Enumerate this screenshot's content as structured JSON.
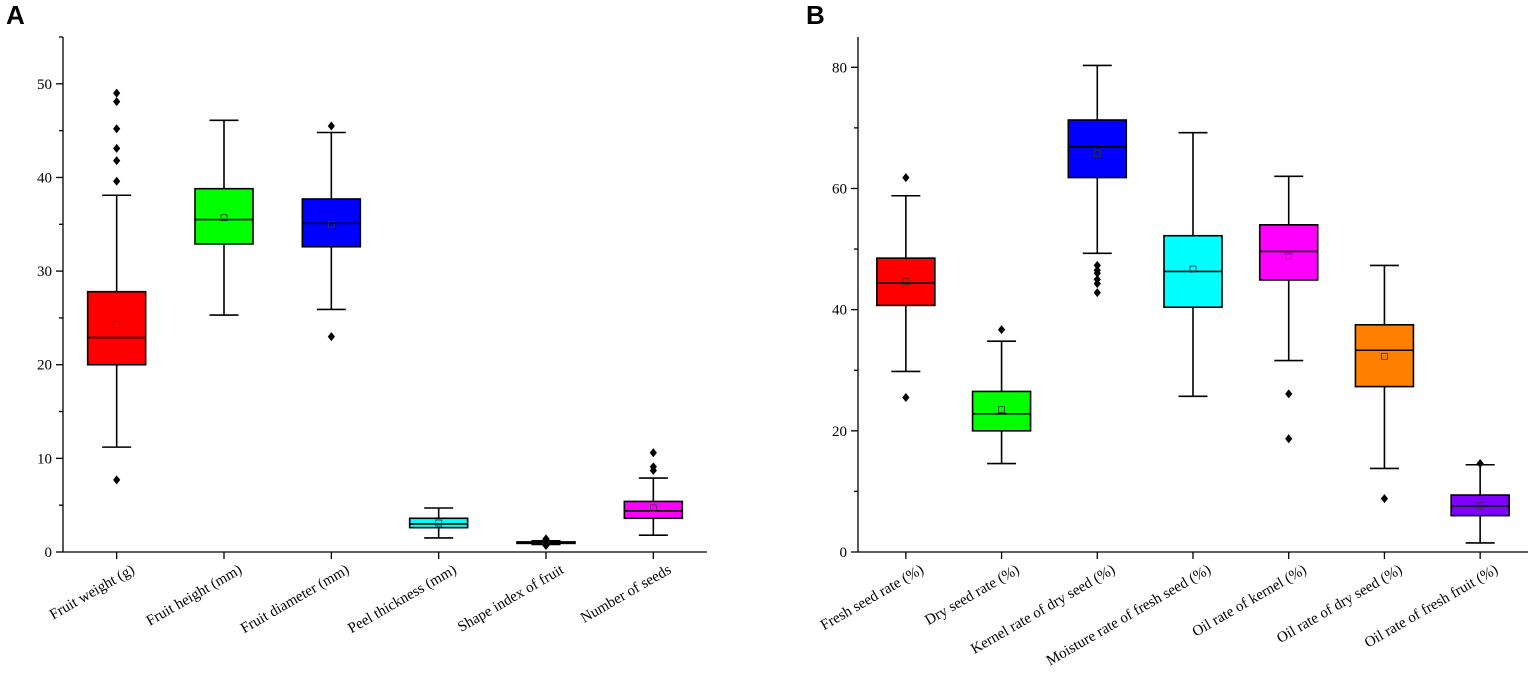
{
  "chart_data": [
    {
      "type": "box",
      "panel_label": "A",
      "ylim": [
        0,
        55
      ],
      "yticks": [
        0,
        10,
        20,
        30,
        40,
        50
      ],
      "categories": [
        "Fruit weight (g)",
        "Fruit height (mm)",
        "Fruit diameter (mm)",
        "Peel thickness (mm)",
        "Shape index of fruit",
        "Number of seeds"
      ],
      "boxes": [
        {
          "name": "Fruit weight (g)",
          "color": "#ff0000",
          "whisker_low": 11.2,
          "q1": 20.0,
          "median": 22.9,
          "q3": 27.8,
          "whisker_high": 38.1,
          "mean": 24.3,
          "outliers": [
            7.7,
            39.6,
            41.8,
            43.1,
            45.2,
            48.1,
            49.0
          ]
        },
        {
          "name": "Fruit height (mm)",
          "color": "#00ff00",
          "whisker_low": 25.3,
          "q1": 32.9,
          "median": 35.5,
          "q3": 38.8,
          "whisker_high": 46.1,
          "mean": 35.7,
          "outliers": []
        },
        {
          "name": "Fruit diameter (mm)",
          "color": "#0000ff",
          "whisker_low": 25.9,
          "q1": 32.6,
          "median": 35.1,
          "q3": 37.7,
          "whisker_high": 44.8,
          "mean": 35.0,
          "outliers": [
            23.0,
            45.5
          ]
        },
        {
          "name": "Peel thickness (mm)",
          "color": "#00ffff",
          "whisker_low": 1.5,
          "q1": 2.6,
          "median": 3.0,
          "q3": 3.6,
          "whisker_high": 4.7,
          "mean": 3.1,
          "outliers": []
        },
        {
          "name": "Shape index of fruit",
          "color": "#222222",
          "whisker_low": 0.8,
          "q1": 0.95,
          "median": 1.0,
          "q3": 1.08,
          "whisker_high": 1.2,
          "mean": 1.0,
          "outliers": [
            0.7,
            1.3,
            1.4
          ]
        },
        {
          "name": "Number of seeds",
          "color": "#ff00ff",
          "whisker_low": 1.8,
          "q1": 3.6,
          "median": 4.4,
          "q3": 5.4,
          "whisker_high": 7.9,
          "mean": 4.7,
          "outliers": [
            8.7,
            9.1,
            10.6
          ]
        }
      ]
    },
    {
      "type": "box",
      "panel_label": "B",
      "ylim": [
        0,
        85
      ],
      "yticks": [
        0,
        20,
        40,
        60,
        80
      ],
      "categories": [
        "Fresh seed rate (%)",
        "Dry seed rate (%)",
        "Kernel rate of dry seed (%)",
        "Moisture rate of fresh seed (%)",
        "Oil rate of kernel (%)",
        "Oil rate of dry seed (%)",
        "Oil rate of fresh fruit (%)"
      ],
      "boxes": [
        {
          "name": "Fresh seed rate (%)",
          "color": "#ff0000",
          "whisker_low": 29.8,
          "q1": 40.7,
          "median": 44.4,
          "q3": 48.5,
          "whisker_high": 58.8,
          "mean": 44.6,
          "outliers": [
            25.5,
            61.8
          ]
        },
        {
          "name": "Dry seed rate (%)",
          "color": "#00ff00",
          "whisker_low": 14.6,
          "q1": 20.0,
          "median": 22.8,
          "q3": 26.5,
          "whisker_high": 34.8,
          "mean": 23.5,
          "outliers": [
            36.7
          ]
        },
        {
          "name": "Kernel rate of dry seed (%)",
          "color": "#0000ff",
          "whisker_low": 49.3,
          "q1": 61.8,
          "median": 66.9,
          "q3": 71.3,
          "whisker_high": 80.3,
          "mean": 65.8,
          "outliers": [
            42.8,
            44.3,
            45.0,
            46.0,
            46.5,
            47.3
          ]
        },
        {
          "name": "Moisture rate of fresh seed (%)",
          "color": "#00ffff",
          "whisker_low": 25.7,
          "q1": 40.4,
          "median": 46.3,
          "q3": 52.2,
          "whisker_high": 69.2,
          "mean": 46.7,
          "outliers": []
        },
        {
          "name": "Oil rate of kernel (%)",
          "color": "#ff00ff",
          "whisker_low": 31.6,
          "q1": 44.9,
          "median": 49.6,
          "q3": 54.0,
          "whisker_high": 62.0,
          "mean": 48.8,
          "outliers": [
            18.7,
            26.1
          ]
        },
        {
          "name": "Oil rate of dry seed (%)",
          "color": "#ff8000",
          "whisker_low": 13.8,
          "q1": 27.3,
          "median": 33.3,
          "q3": 37.5,
          "whisker_high": 47.3,
          "mean": 32.3,
          "outliers": [
            8.8
          ]
        },
        {
          "name": "Oil rate of fresh fruit (%)",
          "color": "#8000ff",
          "whisker_low": 1.5,
          "q1": 6.0,
          "median": 7.6,
          "q3": 9.4,
          "whisker_high": 14.4,
          "mean": 7.7,
          "outliers": [
            14.6
          ]
        }
      ]
    }
  ]
}
